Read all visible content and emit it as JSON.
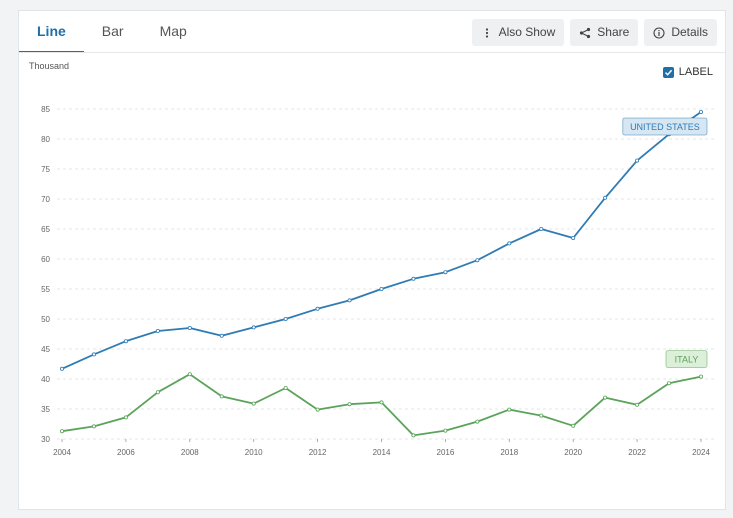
{
  "tabs": [
    {
      "label": "Line",
      "active": true
    },
    {
      "label": "Bar",
      "active": false
    },
    {
      "label": "Map",
      "active": false
    }
  ],
  "actions": {
    "also_show": "Also Show",
    "share": "Share",
    "details": "Details"
  },
  "label_toggle": {
    "text": "LABEL",
    "checked": true
  },
  "chart_data": {
    "type": "line",
    "unit_label": "Thousand",
    "x": [
      2004,
      2005,
      2006,
      2007,
      2008,
      2009,
      2010,
      2011,
      2012,
      2013,
      2014,
      2015,
      2016,
      2017,
      2018,
      2019,
      2020,
      2021,
      2022,
      2023,
      2024
    ],
    "x_ticks": [
      "2004",
      "2006",
      "2008",
      "2010",
      "2012",
      "2014",
      "2016",
      "2018",
      "2020",
      "2022",
      "2024"
    ],
    "y_ticks": [
      "30",
      "35",
      "40",
      "45",
      "50",
      "55",
      "60",
      "65",
      "70",
      "75",
      "80",
      "85"
    ],
    "ylim": [
      30,
      85
    ],
    "xlim": [
      2004,
      2024
    ],
    "grid": true,
    "series": [
      {
        "name": "UNITED STATES",
        "color": "#2f7bb3",
        "label_bg": "#d6e6f3",
        "values": [
          41.7,
          44.1,
          46.3,
          48.0,
          48.5,
          47.2,
          48.6,
          50.0,
          51.7,
          53.1,
          55.0,
          56.7,
          57.8,
          59.8,
          62.6,
          65.0,
          63.5,
          70.2,
          76.4,
          80.8,
          84.5
        ]
      },
      {
        "name": "ITALY",
        "color": "#5ba35a",
        "label_bg": "#dcefd9",
        "values": [
          31.3,
          32.1,
          33.6,
          37.8,
          40.8,
          37.1,
          35.9,
          38.5,
          34.9,
          35.8,
          36.1,
          30.6,
          31.4,
          32.9,
          34.9,
          33.9,
          32.2,
          36.9,
          35.7,
          39.3,
          40.4
        ]
      }
    ]
  }
}
